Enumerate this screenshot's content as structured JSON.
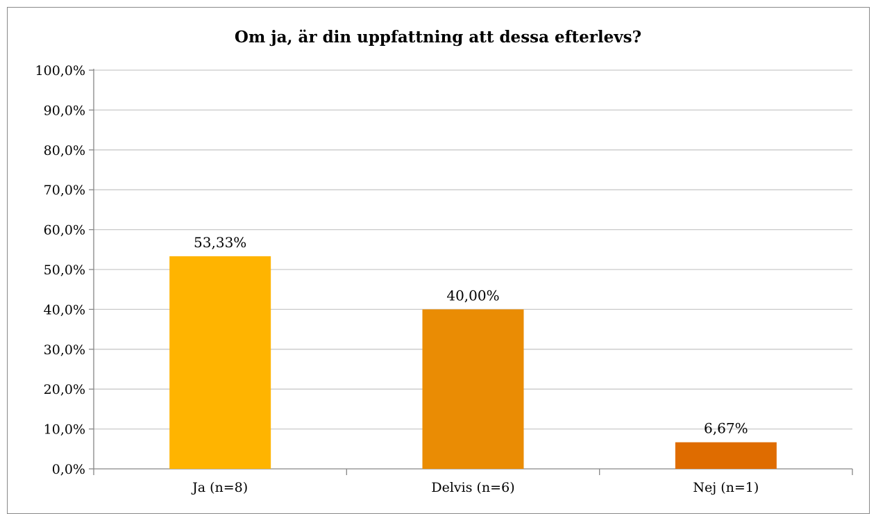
{
  "chart_data": {
    "type": "bar",
    "title": "Om ja, är din uppfattning att dessa efterlevs?",
    "categories": [
      "Ja (n=8)",
      "Delvis (n=6)",
      "Nej (n=1)"
    ],
    "values": [
      53.33,
      40.0,
      6.67
    ],
    "data_labels": [
      "53,33%",
      "40,00%",
      "6,67%"
    ],
    "bar_colors": [
      "#FFB400",
      "#EA8C04",
      "#DF6C00"
    ],
    "ylim": [
      0,
      100
    ],
    "y_ticks": [
      0,
      10,
      20,
      30,
      40,
      50,
      60,
      70,
      80,
      90,
      100
    ],
    "y_tick_labels": [
      "0,0%",
      "10,0%",
      "20,0%",
      "30,0%",
      "40,0%",
      "50,0%",
      "60,0%",
      "70,0%",
      "80,0%",
      "90,0%",
      "100,0%"
    ],
    "xlabel": "",
    "ylabel": "",
    "grid": true,
    "legend": "none"
  }
}
